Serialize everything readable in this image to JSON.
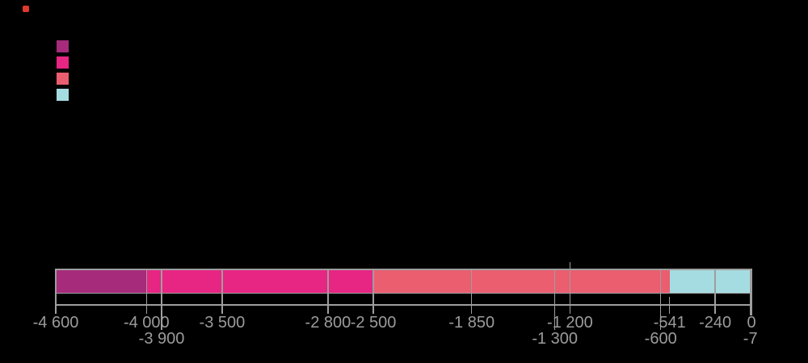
{
  "page": {
    "background": "#000000"
  },
  "decorations": {
    "red_marker": {
      "color": "#df3a2b"
    }
  },
  "chart_data": {
    "type": "bar",
    "subtype": "horizontal-stacked-timeline",
    "title": "",
    "xlabel": "",
    "ylabel": "",
    "grid": false,
    "legend_position": "top-left",
    "x_axis": {
      "min": -4600,
      "max": 0
    },
    "axis_color": "#9e9e9e",
    "label_color": "#9b9b9b",
    "palette": {
      "purple": "#a62b7b",
      "pink": "#e72583",
      "salmon": "#ea5e70",
      "lightblue": "#a5dce1"
    },
    "legend_swatches": [
      "purple",
      "pink",
      "salmon",
      "lightblue"
    ],
    "segments": [
      {
        "start": -4600,
        "end": -4000,
        "color": "purple"
      },
      {
        "start": -4000,
        "end": -3900,
        "color": "pink"
      },
      {
        "start": -3900,
        "end": -3500,
        "color": "pink"
      },
      {
        "start": -3500,
        "end": -2800,
        "color": "pink"
      },
      {
        "start": -2800,
        "end": -2500,
        "color": "pink"
      },
      {
        "start": -2500,
        "end": -1850,
        "color": "salmon"
      },
      {
        "start": -1850,
        "end": -1300,
        "color": "salmon"
      },
      {
        "start": -1300,
        "end": -1200,
        "color": "salmon"
      },
      {
        "start": -1200,
        "end": -600,
        "color": "salmon"
      },
      {
        "start": -600,
        "end": -541,
        "color": "salmon"
      },
      {
        "start": -541,
        "end": -240,
        "color": "lightblue"
      },
      {
        "start": -240,
        "end": -7,
        "color": "lightblue"
      }
    ],
    "ticks": [
      {
        "value": -4600,
        "label": "-4 600",
        "row": 1
      },
      {
        "value": -4000,
        "label": "-4 000",
        "row": 1
      },
      {
        "value": -3900,
        "label": "-3 900",
        "row": 2
      },
      {
        "value": -3500,
        "label": "-3 500",
        "row": 1
      },
      {
        "value": -2800,
        "label": "-2 800",
        "row": 1
      },
      {
        "value": -2500,
        "label": "-2 500",
        "row": 1
      },
      {
        "value": -1850,
        "label": "-1 850",
        "row": 1
      },
      {
        "value": -1300,
        "label": "-1 300",
        "row": 2
      },
      {
        "value": -1200,
        "label": "-1 200",
        "row": 1,
        "marker_above_bar": true
      },
      {
        "value": -600,
        "label": "-600",
        "row": 2
      },
      {
        "value": -541,
        "label": "-541",
        "row": 1,
        "below_bar_only": true
      },
      {
        "value": -240,
        "label": "-240",
        "row": 1
      },
      {
        "value": 0,
        "label": "0",
        "row": 1,
        "edge": true
      },
      {
        "value": -7,
        "label": "-7",
        "row": 2,
        "edge": true
      }
    ]
  }
}
